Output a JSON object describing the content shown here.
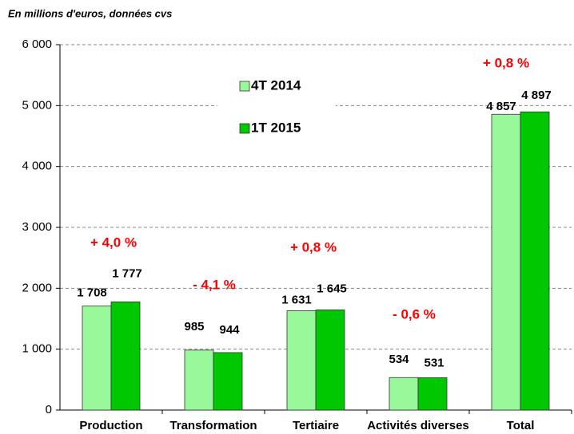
{
  "chart_data": {
    "type": "bar",
    "title": "En millions d'euros, données cvs",
    "categories": [
      "Production",
      "Transformation",
      "Tertiaire",
      "Activités diverses",
      "Total"
    ],
    "series": [
      {
        "name": "4T 2014",
        "color": "#99f899",
        "values": [
          1708,
          985,
          1631,
          534,
          4857
        ],
        "value_labels": [
          "1 708",
          "985",
          "1 631",
          "534",
          "4 857"
        ]
      },
      {
        "name": "1T 2015",
        "color": "#00c800",
        "values": [
          1777,
          944,
          1645,
          531,
          4897
        ],
        "value_labels": [
          "1 777",
          "944",
          "1 645",
          "531",
          "4 897"
        ]
      }
    ],
    "annotations": [
      "+ 4,0 %",
      "- 4,1 %",
      "+ 0,8 %",
      "- 0,6 %",
      "+ 0,8 %"
    ],
    "ylim": [
      0,
      6000
    ],
    "yticks": [
      0,
      {
        "value": 1000,
        "label": "1 000"
      },
      {
        "value": 2000,
        "label": "2 000"
      },
      {
        "value": 3000,
        "label": "3 000"
      },
      {
        "value": 4000,
        "label": "4 000"
      },
      {
        "value": 5000,
        "label": "5 000"
      },
      {
        "value": 6000,
        "label": "6 000"
      }
    ],
    "grid": true
  }
}
